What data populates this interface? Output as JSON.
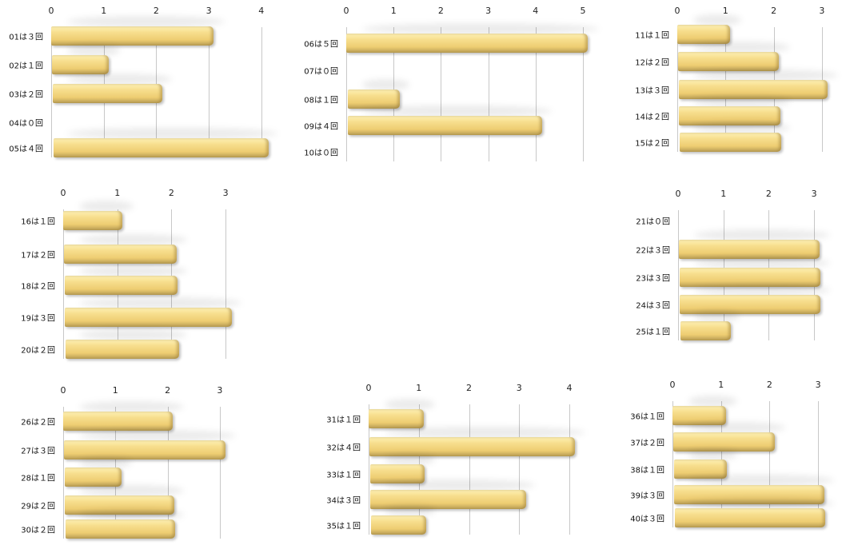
{
  "chart_data": [
    {
      "type": "bar",
      "orientation": "horizontal",
      "categories": [
        "01は３回",
        "02は１回",
        "03は２回",
        "04は０回",
        "05は４回"
      ],
      "values": [
        3,
        1,
        2,
        0,
        4
      ],
      "xticks": [
        "0",
        "1",
        "2",
        "3",
        "4"
      ],
      "grid": true
    },
    {
      "type": "bar",
      "orientation": "horizontal",
      "categories": [
        "06は５回",
        "07は０回",
        "08は１回",
        "09は４回",
        "10は０回"
      ],
      "values": [
        5,
        0,
        1,
        4,
        0
      ],
      "xticks": [
        "0",
        "1",
        "2",
        "3",
        "4",
        "5"
      ],
      "grid": true
    },
    {
      "type": "bar",
      "orientation": "horizontal",
      "categories": [
        "11は１回",
        "12は２回",
        "13は３回",
        "14は２回",
        "15は２回"
      ],
      "values": [
        1,
        2,
        3,
        2,
        2
      ],
      "xticks": [
        "0",
        "1",
        "2",
        "3"
      ],
      "grid": true
    },
    {
      "type": "bar",
      "orientation": "horizontal",
      "categories": [
        "16は１回",
        "17は２回",
        "18は２回",
        "19は３回",
        "20は２回"
      ],
      "values": [
        1,
        2,
        2,
        3,
        2
      ],
      "xticks": [
        "0",
        "1",
        "2",
        "3"
      ],
      "grid": true
    },
    {
      "type": "bar",
      "orientation": "horizontal",
      "categories": [
        "21は０回",
        "22は３回",
        "23は３回",
        "24は３回",
        "25は１回"
      ],
      "values": [
        0,
        3,
        3,
        3,
        1
      ],
      "xticks": [
        "0",
        "1",
        "2",
        "3"
      ],
      "grid": true
    },
    {
      "type": "bar",
      "orientation": "horizontal",
      "categories": [
        "26は２回",
        "27は３回",
        "28は１回",
        "29は２回",
        "30は２回"
      ],
      "values": [
        2,
        3,
        1,
        2,
        2
      ],
      "xticks": [
        "0",
        "1",
        "2",
        "3"
      ],
      "grid": true
    },
    {
      "type": "bar",
      "orientation": "horizontal",
      "categories": [
        "31は１回",
        "32は４回",
        "33は１回",
        "34は３回",
        "35は１回"
      ],
      "values": [
        1,
        4,
        1,
        3,
        1
      ],
      "xticks": [
        "0",
        "1",
        "2",
        "3",
        "4"
      ],
      "grid": true
    },
    {
      "type": "bar",
      "orientation": "horizontal",
      "categories": [
        "36は１回",
        "37は２回",
        "38は１回",
        "39は３回",
        "40は３回"
      ],
      "values": [
        1,
        2,
        1,
        3,
        3
      ],
      "xticks": [
        "0",
        "1",
        "2",
        "3"
      ],
      "grid": true
    }
  ],
  "colors": {
    "bar": "#f3d67e",
    "grid": "#c8c8c8"
  }
}
